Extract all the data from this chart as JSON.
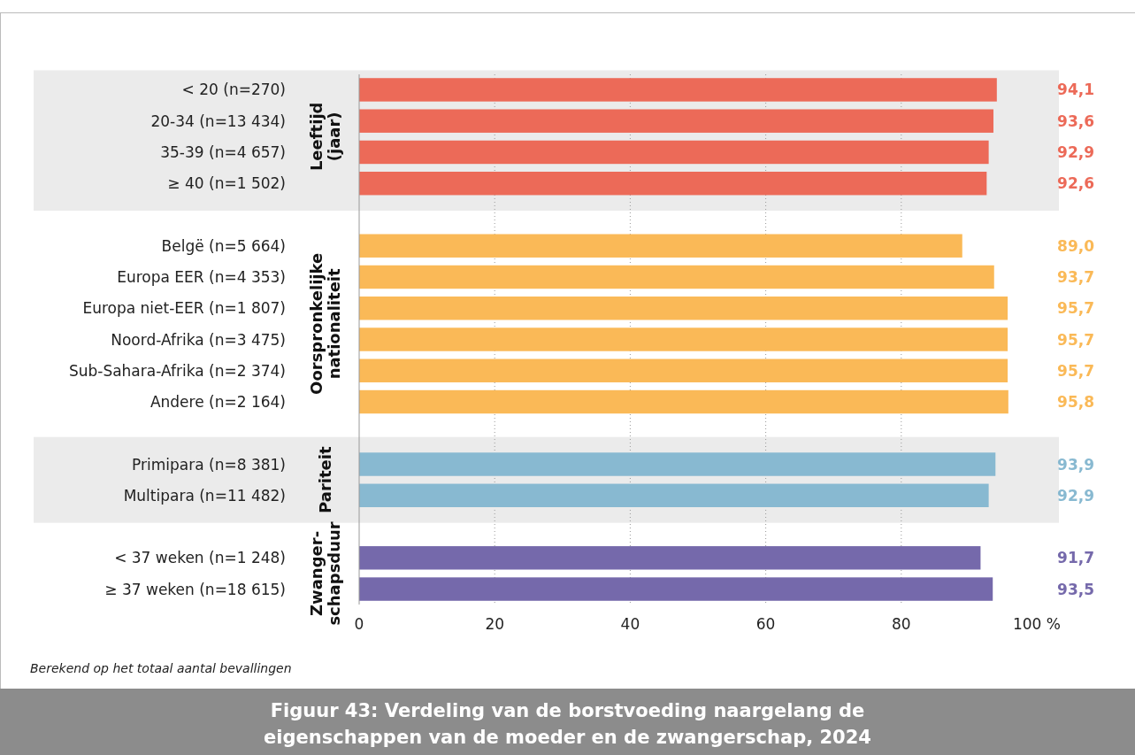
{
  "chart_data": {
    "type": "bar",
    "orientation": "horizontal",
    "title": "Figuur 43: Verdeling van de borstvoeding naargelang de eigenschappen van de moeder en de zwangerschap, 2024",
    "categories": [
      "< 20 (n=270)",
      "20-34 (n=13 434)",
      "35-39 (n=4 657)",
      "≥ 40 (n=1 502)",
      null,
      "Belgë (n=5 664)",
      "Europa EER (n=4 353)",
      "Europa niet-EER (n=1 807)",
      "Noord-Afrika (n=3 475)",
      "Sub-Sahara-Afrika (n=2 374)",
      "Andere (n=2 164)",
      null,
      "Primipara (n=8 381)",
      "Multipara (n=11 482)",
      null,
      "< 37 weken (n=1 248)",
      "≥ 37 weken (n=18 615)"
    ],
    "values": [
      94.1,
      93.6,
      92.9,
      92.6,
      null,
      89.0,
      93.7,
      95.7,
      95.7,
      95.7,
      95.8,
      null,
      93.9,
      92.9,
      null,
      91.7,
      93.5
    ],
    "value_labels": [
      "94,1",
      "93,6",
      "92,9",
      "92,6",
      null,
      "89,0",
      "93,7",
      "95,7",
      "95,7",
      "95,7",
      "95,8",
      null,
      "93,9",
      "92,9",
      null,
      "91,7",
      "93,5"
    ],
    "colors": [
      "#ec6a58",
      "#ec6a58",
      "#ec6a58",
      "#ec6a58",
      null,
      "#fab957",
      "#fab957",
      "#fab957",
      "#fab957",
      "#fab957",
      "#fab957",
      null,
      "#88b9d1",
      "#88b9d1",
      null,
      "#7569ab",
      "#7569ab"
    ],
    "xlim": [
      0,
      100
    ],
    "xticks": [
      0,
      20,
      40,
      60,
      80,
      {
        "value": 100,
        "label": "100 %"
      }
    ],
    "grid": "x",
    "annotations": [
      "Berekend op het totaal aantal bevallingen",
      "Leeftijd (jaar)",
      "Oorspronkelijke nationaliteit",
      "Pariteit",
      "Zwanger- schapsduur"
    ]
  }
}
